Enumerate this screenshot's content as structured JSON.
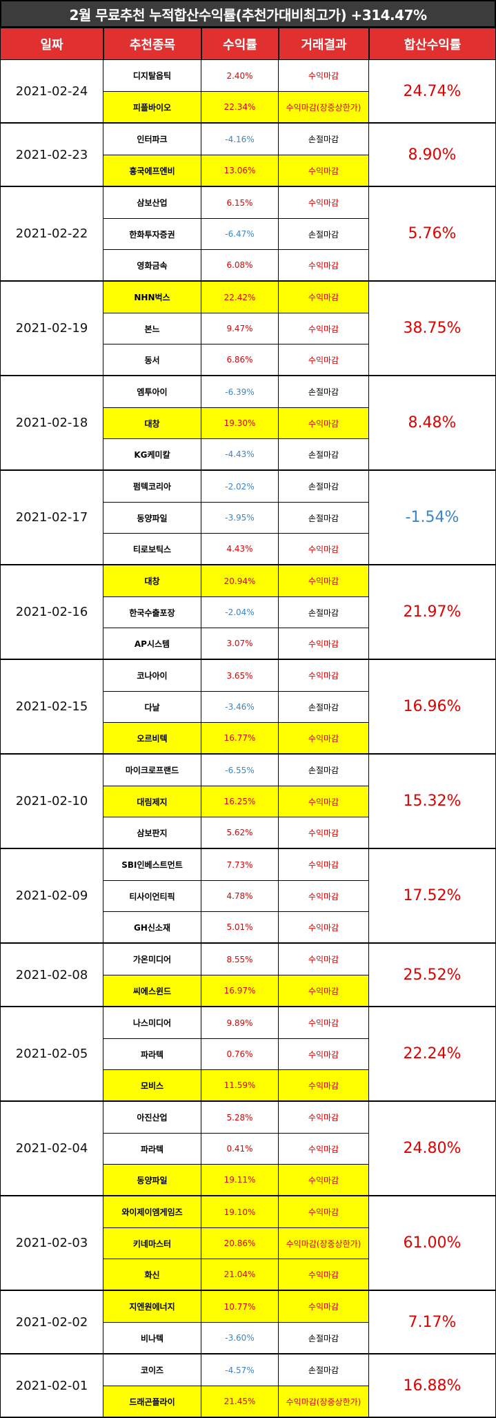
{
  "title": "2월 무료추천 누적합산수익률(추천가대비최고가) +314.47%",
  "headers": [
    "일짜",
    "추천종목",
    "수익률",
    "거래결과",
    "합산수익률"
  ],
  "colors": {
    "header_bg": "#e03030",
    "title_bg": "#3c3c3c",
    "highlight": "#ffff00",
    "positive": "#e00000",
    "negative": "#3a84c9"
  },
  "groups": [
    {
      "date": "2021-02-24",
      "total": "24.74%",
      "negative": false,
      "rows": [
        {
          "stock": "디지탈옵틱",
          "ret": "2.40%",
          "result": "수익마감",
          "hl": false
        },
        {
          "stock": "피플바이오",
          "ret": "22.34%",
          "result": "수익마감(장중상한가)",
          "hl": true
        }
      ]
    },
    {
      "date": "2021-02-23",
      "total": "8.90%",
      "negative": false,
      "rows": [
        {
          "stock": "인터파크",
          "ret": "-4.16%",
          "result": "손절마감",
          "hl": false
        },
        {
          "stock": "흥국에프엔비",
          "ret": "13.06%",
          "result": "수익마감",
          "hl": true
        }
      ]
    },
    {
      "date": "2021-02-22",
      "total": "5.76%",
      "negative": false,
      "rows": [
        {
          "stock": "삼보산업",
          "ret": "6.15%",
          "result": "수익마감",
          "hl": false
        },
        {
          "stock": "한화투자증권",
          "ret": "-6.47%",
          "result": "손절마감",
          "hl": false
        },
        {
          "stock": "영화금속",
          "ret": "6.08%",
          "result": "수익마감",
          "hl": false
        }
      ]
    },
    {
      "date": "2021-02-19",
      "total": "38.75%",
      "negative": false,
      "rows": [
        {
          "stock": "NHN벅스",
          "ret": "22.42%",
          "result": "수익마감",
          "hl": true
        },
        {
          "stock": "본느",
          "ret": "9.47%",
          "result": "수익마감",
          "hl": false
        },
        {
          "stock": "동서",
          "ret": "6.86%",
          "result": "수익마감",
          "hl": false
        }
      ]
    },
    {
      "date": "2021-02-18",
      "total": "8.48%",
      "negative": false,
      "rows": [
        {
          "stock": "엠투아이",
          "ret": "-6.39%",
          "result": "손절마감",
          "hl": false
        },
        {
          "stock": "대창",
          "ret": "19.30%",
          "result": "수익마감",
          "hl": true
        },
        {
          "stock": "KG케미칼",
          "ret": "-4.43%",
          "result": "손절마감",
          "hl": false
        }
      ]
    },
    {
      "date": "2021-02-17",
      "total": "-1.54%",
      "negative": true,
      "rows": [
        {
          "stock": "펌텍코리아",
          "ret": "-2.02%",
          "result": "손절마감",
          "hl": false
        },
        {
          "stock": "동양파일",
          "ret": "-3.95%",
          "result": "손절마감",
          "hl": false
        },
        {
          "stock": "티로보틱스",
          "ret": "4.43%",
          "result": "수익마감",
          "hl": false
        }
      ]
    },
    {
      "date": "2021-02-16",
      "total": "21.97%",
      "negative": false,
      "rows": [
        {
          "stock": "대창",
          "ret": "20.94%",
          "result": "수익마감",
          "hl": true
        },
        {
          "stock": "한국수출포장",
          "ret": "-2.04%",
          "result": "손절마감",
          "hl": false
        },
        {
          "stock": "AP시스템",
          "ret": "3.07%",
          "result": "수익마감",
          "hl": false
        }
      ]
    },
    {
      "date": "2021-02-15",
      "total": "16.96%",
      "negative": false,
      "rows": [
        {
          "stock": "코나아이",
          "ret": "3.65%",
          "result": "수익마감",
          "hl": false
        },
        {
          "stock": "다날",
          "ret": "-3.46%",
          "result": "손절마감",
          "hl": false
        },
        {
          "stock": "오르비텍",
          "ret": "16.77%",
          "result": "수익마감",
          "hl": true
        }
      ]
    },
    {
      "date": "2021-02-10",
      "total": "15.32%",
      "negative": false,
      "rows": [
        {
          "stock": "마이크로프랜드",
          "ret": "-6.55%",
          "result": "손절마감",
          "hl": false
        },
        {
          "stock": "대림제지",
          "ret": "16.25%",
          "result": "수익마감",
          "hl": true
        },
        {
          "stock": "삼보판지",
          "ret": "5.62%",
          "result": "수익마감",
          "hl": false
        }
      ]
    },
    {
      "date": "2021-02-09",
      "total": "17.52%",
      "negative": false,
      "rows": [
        {
          "stock": "SBI인베스트먼트",
          "ret": "7.73%",
          "result": "수익마감",
          "hl": false
        },
        {
          "stock": "티사이언티픽",
          "ret": "4.78%",
          "result": "수익마감",
          "hl": false
        },
        {
          "stock": "GH신소재",
          "ret": "5.01%",
          "result": "수익마감",
          "hl": false
        }
      ]
    },
    {
      "date": "2021-02-08",
      "total": "25.52%",
      "negative": false,
      "rows": [
        {
          "stock": "가온미디어",
          "ret": "8.55%",
          "result": "수익마감",
          "hl": false
        },
        {
          "stock": "씨에스윈드",
          "ret": "16.97%",
          "result": "수익마감",
          "hl": true
        }
      ]
    },
    {
      "date": "2021-02-05",
      "total": "22.24%",
      "negative": false,
      "rows": [
        {
          "stock": "나스미디어",
          "ret": "9.89%",
          "result": "수익마감",
          "hl": false
        },
        {
          "stock": "파라텍",
          "ret": "0.76%",
          "result": "수익마감",
          "hl": false
        },
        {
          "stock": "모비스",
          "ret": "11.59%",
          "result": "수익마감",
          "hl": true
        }
      ]
    },
    {
      "date": "2021-02-04",
      "total": "24.80%",
      "negative": false,
      "rows": [
        {
          "stock": "아진산업",
          "ret": "5.28%",
          "result": "수익마감",
          "hl": false
        },
        {
          "stock": "파라텍",
          "ret": "0.41%",
          "result": "수익마감",
          "hl": false
        },
        {
          "stock": "동양파일",
          "ret": "19.11%",
          "result": "수익마감",
          "hl": true
        }
      ]
    },
    {
      "date": "2021-02-03",
      "total": "61.00%",
      "negative": false,
      "rows": [
        {
          "stock": "와이제이엠게임즈",
          "ret": "19.10%",
          "result": "수익마감",
          "hl": true
        },
        {
          "stock": "키네마스터",
          "ret": "20.86%",
          "result": "수익마감(장중상한가)",
          "hl": true
        },
        {
          "stock": "화신",
          "ret": "21.04%",
          "result": "수익마감",
          "hl": true
        }
      ]
    },
    {
      "date": "2021-02-02",
      "total": "7.17%",
      "negative": false,
      "rows": [
        {
          "stock": "지엔원에너지",
          "ret": "10.77%",
          "result": "수익마감",
          "hl": true
        },
        {
          "stock": "비나텍",
          "ret": "-3.60%",
          "result": "손절마감",
          "hl": false
        }
      ]
    },
    {
      "date": "2021-02-01",
      "total": "16.88%",
      "negative": false,
      "rows": [
        {
          "stock": "코이즈",
          "ret": "-4.57%",
          "result": "손절마감",
          "hl": false
        },
        {
          "stock": "드래곤플라이",
          "ret": "21.45%",
          "result": "수익마감(장중상한가)",
          "hl": true
        }
      ]
    }
  ]
}
